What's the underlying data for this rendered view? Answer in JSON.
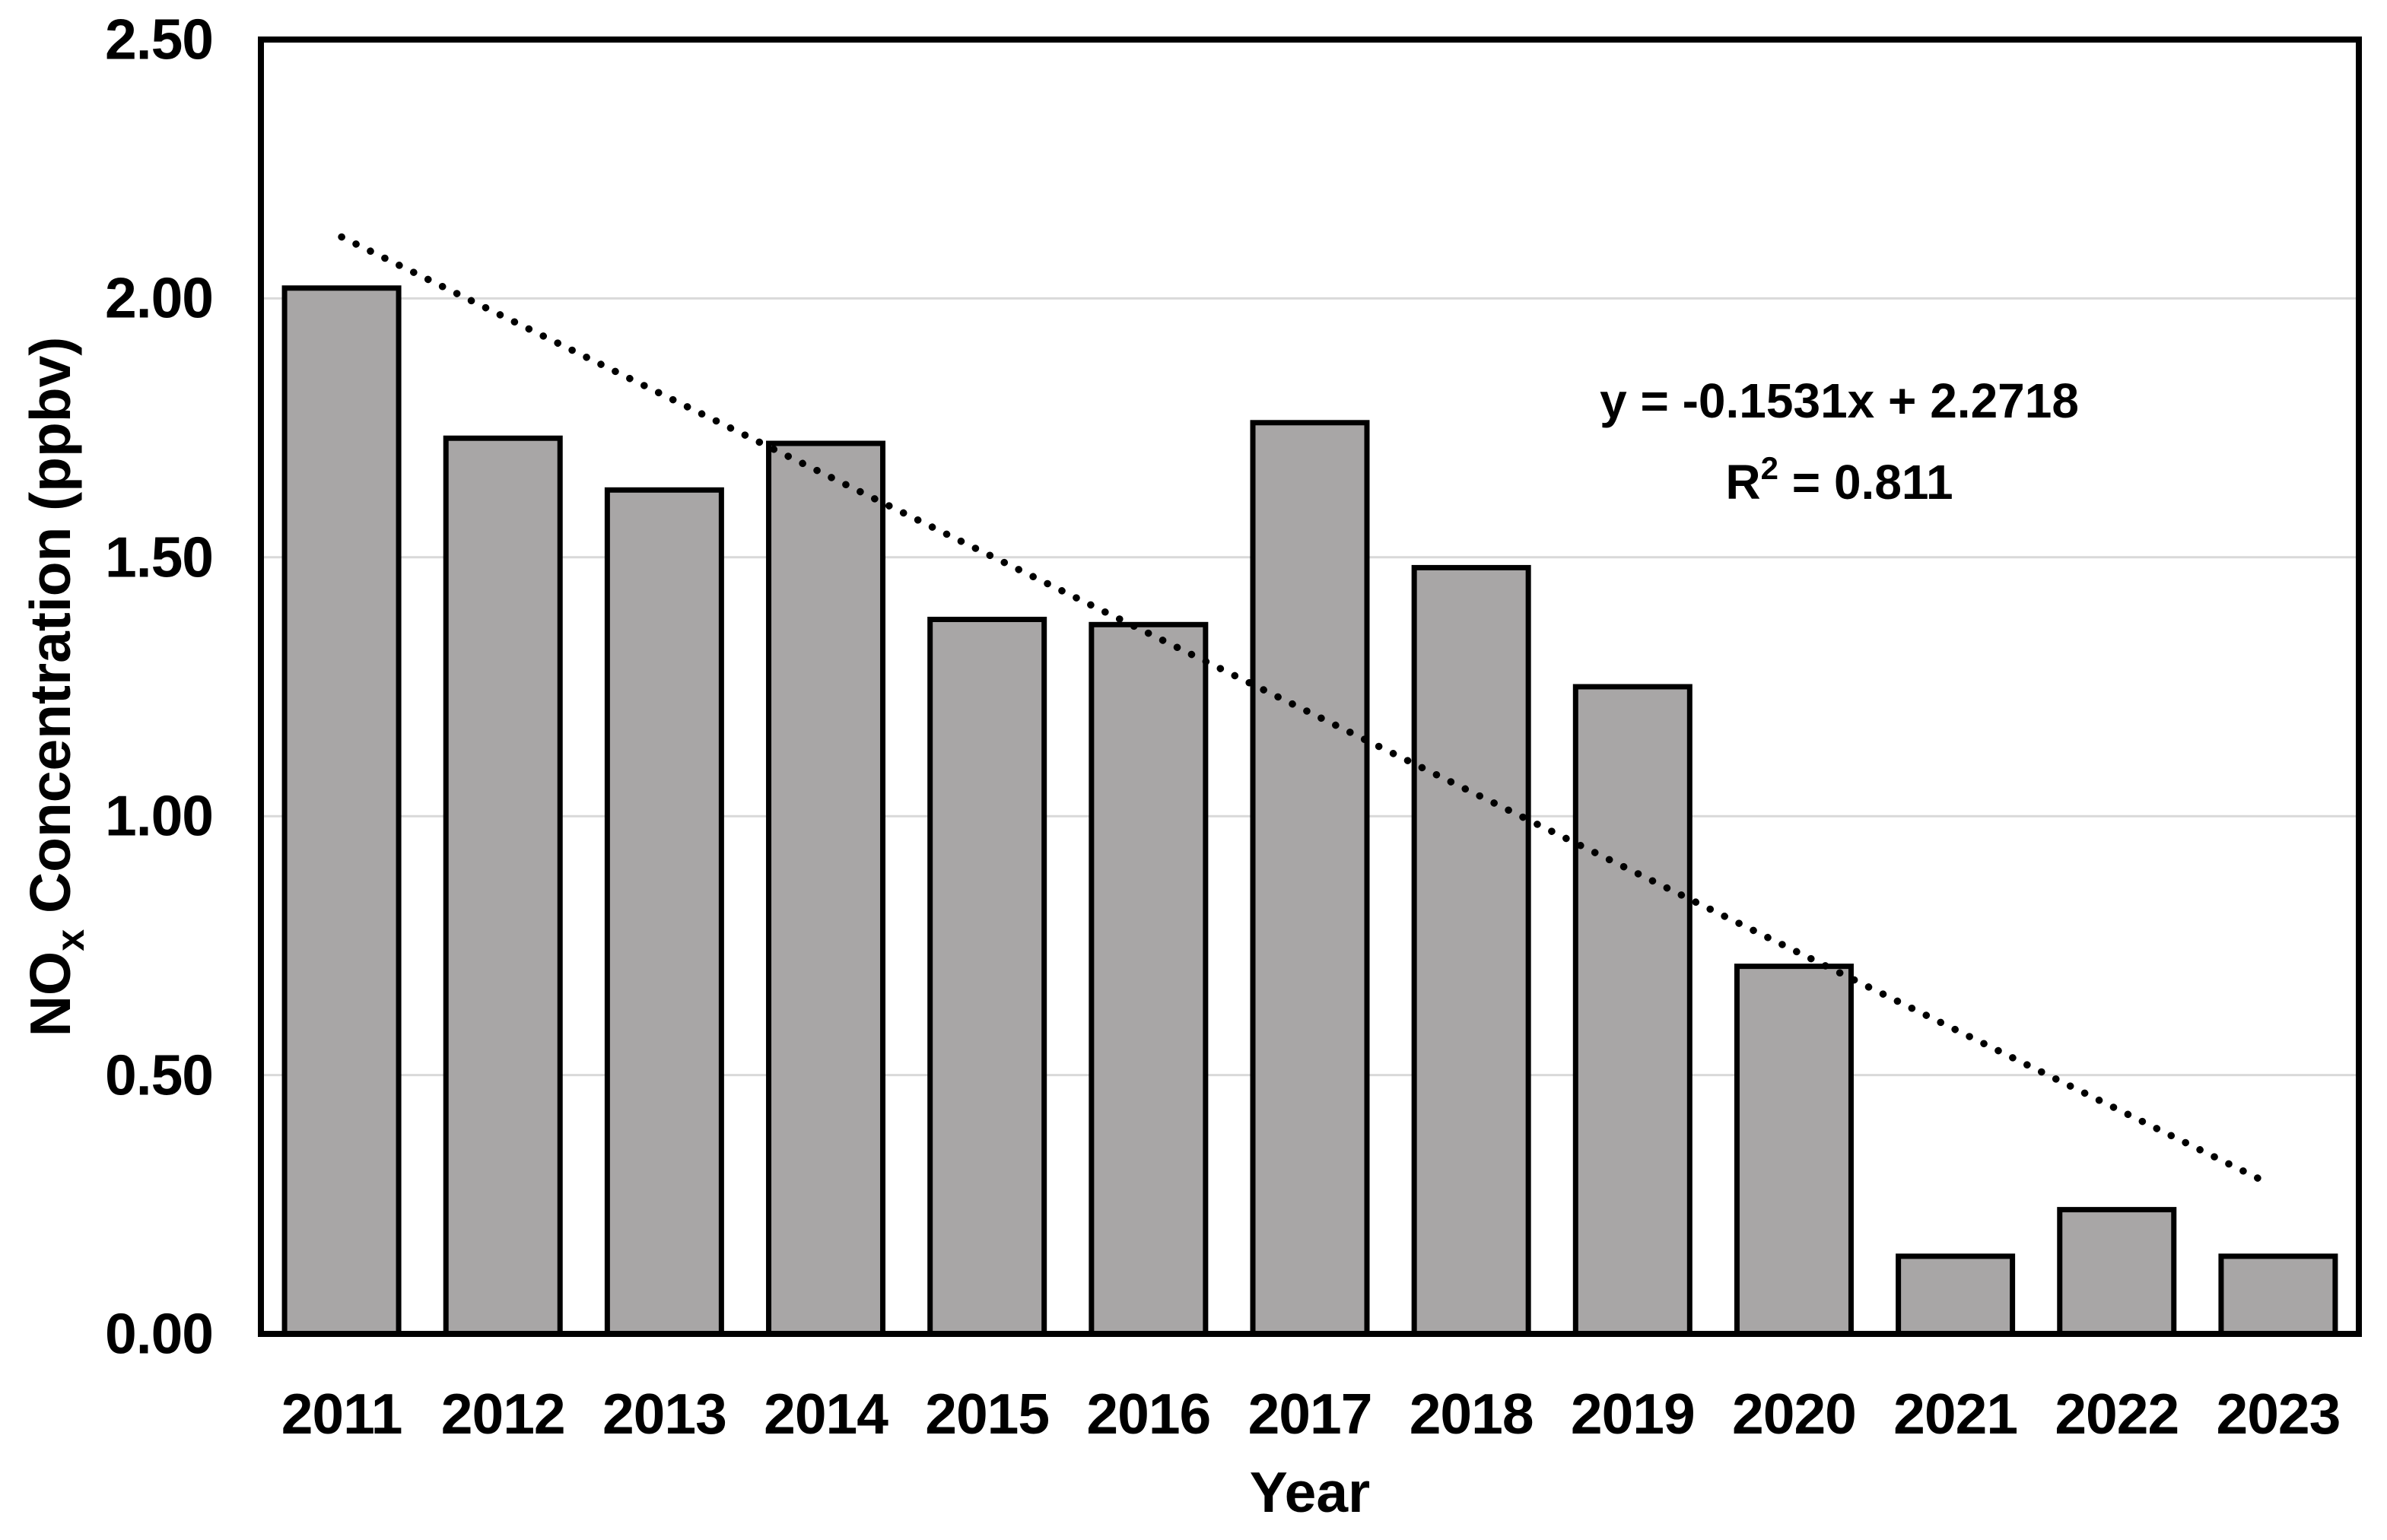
{
  "chart_data": {
    "type": "bar",
    "categories": [
      "2011",
      "2012",
      "2013",
      "2014",
      "2015",
      "2016",
      "2017",
      "2018",
      "2019",
      "2020",
      "2021",
      "2022",
      "2023"
    ],
    "values": [
      2.02,
      1.73,
      1.63,
      1.72,
      1.38,
      1.37,
      1.76,
      1.48,
      1.25,
      0.71,
      0.15,
      0.24,
      0.15
    ],
    "xlabel": "Year",
    "ylabel": "NOx Concentration (ppbv)",
    "ylabel_parts": {
      "main": "NO",
      "sub": "x",
      "rest": " Concentration (ppbv)"
    },
    "ylim": [
      0,
      2.5
    ],
    "y_ticks": [
      {
        "label": "0.00",
        "value": 0.0
      },
      {
        "label": "0.50",
        "value": 0.5
      },
      {
        "label": "1.00",
        "value": 1.0
      },
      {
        "label": "1.50",
        "value": 1.5
      },
      {
        "label": "2.00",
        "value": 2.0
      },
      {
        "label": "2.50",
        "value": 2.5
      }
    ],
    "grid": "horizontal-light-gray",
    "legend": "none",
    "colors": {
      "bar_fill": "#a8a6a6",
      "bar_stroke": "#000000",
      "gridline": "#d9d9d9",
      "frame": "#000000",
      "trendline": "#000000",
      "background": "#ffffff",
      "text": "#000000"
    },
    "trendline": {
      "style": "dotted",
      "slope": -0.1531,
      "intercept": 2.2718,
      "x_start": 1,
      "x_end": 12.96,
      "equation": "y = -0.1531x + 2.2718",
      "r2_parts": {
        "base": "R",
        "sup": "2",
        "rest": " = 0.811"
      },
      "r_squared_text": "R² = 0.811"
    }
  }
}
